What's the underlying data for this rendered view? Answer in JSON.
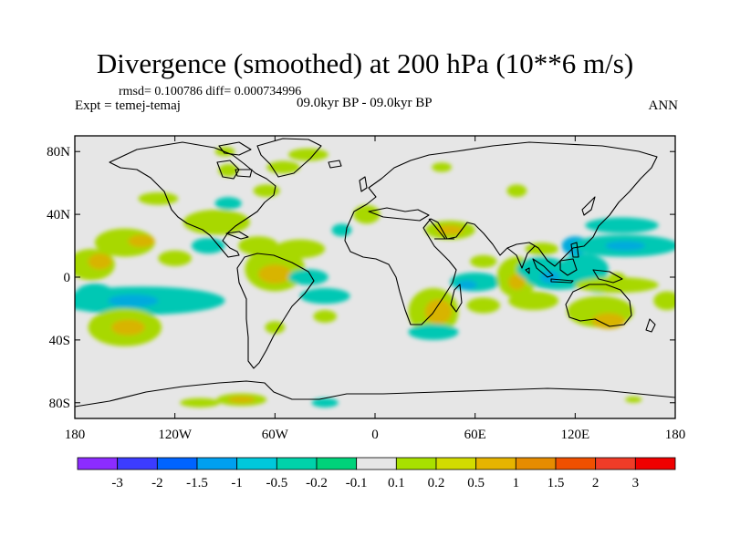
{
  "title": "Divergence (smoothed) at 200 hPa (10**6 m/s)",
  "stats_line": "rmsd= 0.100786 diff= 0.000734996",
  "experiment": "Expt = temej-temaj",
  "period": "09.0kyr BP - 09.0kyr BP",
  "season": "ANN",
  "map": {
    "lon_range": [
      -180,
      180
    ],
    "lat_range": [
      -90,
      90
    ],
    "background_color": "#e6e6e6",
    "land_outline_color": "#000000",
    "lat_ticks": [
      {
        "lat": 80,
        "label": "80N"
      },
      {
        "lat": 40,
        "label": "40N"
      },
      {
        "lat": 0,
        "label": "0"
      },
      {
        "lat": -40,
        "label": "40S"
      },
      {
        "lat": -80,
        "label": "80S"
      }
    ],
    "lon_ticks": [
      {
        "lon": -180,
        "label": "180"
      },
      {
        "lon": -120,
        "label": "120W"
      },
      {
        "lon": -60,
        "label": "60W"
      },
      {
        "lon": 0,
        "label": "0"
      },
      {
        "lon": 60,
        "label": "60E"
      },
      {
        "lon": 120,
        "label": "120E"
      },
      {
        "lon": 180,
        "label": "180"
      }
    ],
    "anomaly_regions": [
      {
        "lon": -170,
        "lat": 8,
        "rlon": 14,
        "rlat": 10,
        "color": "#a8d800"
      },
      {
        "lon": -165,
        "lat": 10,
        "rlon": 7,
        "rlat": 5,
        "color": "#d8b400"
      },
      {
        "lon": -150,
        "lat": 22,
        "rlon": 18,
        "rlat": 9,
        "color": "#a8d800"
      },
      {
        "lon": -140,
        "lat": 23,
        "rlon": 8,
        "rlat": 4,
        "color": "#d8b400"
      },
      {
        "lon": -120,
        "lat": 12,
        "rlon": 10,
        "rlat": 5,
        "color": "#a8d800"
      },
      {
        "lon": -168,
        "lat": -12,
        "rlon": 12,
        "rlat": 8,
        "color": "#00c8b4"
      },
      {
        "lon": -140,
        "lat": -15,
        "rlon": 50,
        "rlat": 9,
        "color": "#00c8b4"
      },
      {
        "lon": -145,
        "lat": -15,
        "rlon": 15,
        "rlat": 4,
        "color": "#00aadd"
      },
      {
        "lon": -150,
        "lat": -32,
        "rlon": 22,
        "rlat": 12,
        "color": "#a8d800"
      },
      {
        "lon": -148,
        "lat": -32,
        "rlon": 10,
        "rlat": 5,
        "color": "#d8b400"
      },
      {
        "lon": -95,
        "lat": 35,
        "rlon": 20,
        "rlat": 8,
        "color": "#a8d800"
      },
      {
        "lon": -88,
        "lat": 47,
        "rlon": 8,
        "rlat": 4,
        "color": "#00c8b4"
      },
      {
        "lon": -100,
        "lat": 20,
        "rlon": 10,
        "rlat": 5,
        "color": "#00c8b4"
      },
      {
        "lon": -70,
        "lat": 20,
        "rlon": 12,
        "rlat": 6,
        "color": "#a8d800"
      },
      {
        "lon": -60,
        "lat": 5,
        "rlon": 18,
        "rlat": 14,
        "color": "#a8d800"
      },
      {
        "lon": -60,
        "lat": 2,
        "rlon": 10,
        "rlat": 6,
        "color": "#d8b400"
      },
      {
        "lon": -45,
        "lat": 18,
        "rlon": 15,
        "rlat": 6,
        "color": "#a8d800"
      },
      {
        "lon": -40,
        "lat": 0,
        "rlon": 12,
        "rlat": 5,
        "color": "#00c8b4"
      },
      {
        "lon": -30,
        "lat": -12,
        "rlon": 15,
        "rlat": 5,
        "color": "#00c8b4"
      },
      {
        "lon": -30,
        "lat": -25,
        "rlon": 7,
        "rlat": 4,
        "color": "#a8d800"
      },
      {
        "lon": -60,
        "lat": -32,
        "rlon": 6,
        "rlat": 4,
        "color": "#a8d800"
      },
      {
        "lon": -130,
        "lat": 50,
        "rlon": 12,
        "rlat": 4,
        "color": "#a8d800"
      },
      {
        "lon": -55,
        "lat": 70,
        "rlon": 10,
        "rlat": 4,
        "color": "#a8d800"
      },
      {
        "lon": -40,
        "lat": 78,
        "rlon": 12,
        "rlat": 4,
        "color": "#a8d800"
      },
      {
        "lon": -88,
        "lat": 68,
        "rlon": 6,
        "rlat": 4,
        "color": "#a8d800"
      },
      {
        "lon": -90,
        "lat": 80,
        "rlon": 6,
        "rlat": 3,
        "color": "#a8d800"
      },
      {
        "lon": -65,
        "lat": 55,
        "rlon": 8,
        "rlat": 4,
        "color": "#a8d800"
      },
      {
        "lon": -5,
        "lat": 40,
        "rlon": 8,
        "rlat": 6,
        "color": "#a8d800"
      },
      {
        "lon": -20,
        "lat": 30,
        "rlon": 6,
        "rlat": 4,
        "color": "#00c8b4"
      },
      {
        "lon": 45,
        "lat": 30,
        "rlon": 15,
        "rlat": 6,
        "color": "#a8d800"
      },
      {
        "lon": 45,
        "lat": 30,
        "rlon": 8,
        "rlat": 3,
        "color": "#d8b400"
      },
      {
        "lon": 65,
        "lat": 10,
        "rlon": 8,
        "rlat": 4,
        "color": "#a8d800"
      },
      {
        "lon": 85,
        "lat": 55,
        "rlon": 6,
        "rlat": 4,
        "color": "#a8d800"
      },
      {
        "lon": 40,
        "lat": 70,
        "rlon": 6,
        "rlat": 3,
        "color": "#a8d800"
      },
      {
        "lon": 60,
        "lat": -3,
        "rlon": 15,
        "rlat": 6,
        "color": "#00c8b4"
      },
      {
        "lon": 55,
        "lat": -5,
        "rlon": 6,
        "rlat": 3,
        "color": "#00aadd"
      },
      {
        "lon": 35,
        "lat": -22,
        "rlon": 15,
        "rlat": 15,
        "color": "#a8d800"
      },
      {
        "lon": 38,
        "lat": -22,
        "rlon": 8,
        "rlat": 8,
        "color": "#d8b400"
      },
      {
        "lon": 35,
        "lat": -35,
        "rlon": 15,
        "rlat": 5,
        "color": "#00c8b4"
      },
      {
        "lon": 65,
        "lat": -18,
        "rlon": 10,
        "rlat": 5,
        "color": "#a8d800"
      },
      {
        "lon": 85,
        "lat": 0,
        "rlon": 12,
        "rlat": 13,
        "color": "#a8d800"
      },
      {
        "lon": 85,
        "lat": -3,
        "rlon": 5,
        "rlat": 5,
        "color": "#d8b400"
      },
      {
        "lon": 95,
        "lat": -15,
        "rlon": 15,
        "rlat": 6,
        "color": "#a8d800"
      },
      {
        "lon": 100,
        "lat": 18,
        "rlon": 10,
        "rlat": 4,
        "color": "#a8d800"
      },
      {
        "lon": 100,
        "lat": 5,
        "rlon": 15,
        "rlat": 8,
        "color": "#00c8b4"
      },
      {
        "lon": 110,
        "lat": 0,
        "rlon": 20,
        "rlat": 8,
        "color": "#00c8b4"
      },
      {
        "lon": 105,
        "lat": 0,
        "rlon": 6,
        "rlat": 4,
        "color": "#00aadd"
      },
      {
        "lon": 125,
        "lat": 5,
        "rlon": 15,
        "rlat": 10,
        "color": "#00c8b4"
      },
      {
        "lon": 120,
        "lat": 20,
        "rlon": 8,
        "rlat": 6,
        "color": "#00aadd"
      },
      {
        "lon": 150,
        "lat": 20,
        "rlon": 32,
        "rlat": 7,
        "color": "#00c8b4"
      },
      {
        "lon": 150,
        "lat": 20,
        "rlon": 12,
        "rlat": 3,
        "color": "#00aadd"
      },
      {
        "lon": 148,
        "lat": 33,
        "rlon": 22,
        "rlat": 5,
        "color": "#00c8b4"
      },
      {
        "lon": 135,
        "lat": -5,
        "rlon": 10,
        "rlat": 5,
        "color": "#00c8b4"
      },
      {
        "lon": 145,
        "lat": -5,
        "rlon": 25,
        "rlat": 5,
        "color": "#a8d800"
      },
      {
        "lon": 135,
        "lat": -22,
        "rlon": 20,
        "rlat": 10,
        "color": "#a8d800"
      },
      {
        "lon": 140,
        "lat": -28,
        "rlon": 10,
        "rlat": 5,
        "color": "#d8b400"
      },
      {
        "lon": 175,
        "lat": -15,
        "rlon": 8,
        "rlat": 6,
        "color": "#a8d800"
      },
      {
        "lon": 145,
        "lat": 0,
        "rlon": 5,
        "rlat": 3,
        "color": "#a8d800"
      },
      {
        "lon": -105,
        "lat": -80,
        "rlon": 12,
        "rlat": 3,
        "color": "#a8d800"
      },
      {
        "lon": -80,
        "lat": -78,
        "rlon": 15,
        "rlat": 4,
        "color": "#a8d800"
      },
      {
        "lon": -80,
        "lat": -78,
        "rlon": 8,
        "rlat": 2,
        "color": "#d8b400"
      },
      {
        "lon": -30,
        "lat": -80,
        "rlon": 8,
        "rlat": 3,
        "color": "#00c8b4"
      },
      {
        "lon": 155,
        "lat": -78,
        "rlon": 5,
        "rlat": 2,
        "color": "#a8d800"
      }
    ]
  },
  "colorbar": {
    "colors": [
      "#8c2cff",
      "#3c3cff",
      "#0064ff",
      "#00a0f0",
      "#00c8dc",
      "#00d2aa",
      "#00d27a",
      "#e6e6e6",
      "#a8e000",
      "#d2dc00",
      "#e6b400",
      "#e68c00",
      "#f05000",
      "#f03c28",
      "#f00000"
    ],
    "labels": [
      "-3",
      "-2",
      "-1.5",
      "-1",
      "-0.5",
      "-0.2",
      "-0.1",
      "0.1",
      "0.2",
      "0.5",
      "1",
      "1.5",
      "2",
      "3"
    ]
  }
}
